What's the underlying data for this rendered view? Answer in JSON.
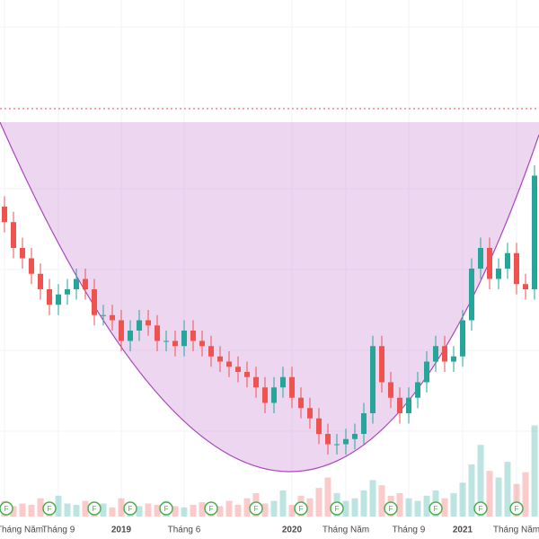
{
  "chart_data": {
    "type": "candlestick",
    "categories": [
      "Tháng Năm",
      null,
      null,
      null,
      null,
      null,
      "Tháng 9",
      null,
      null,
      null,
      null,
      null,
      null,
      "2019",
      null,
      null,
      null,
      null,
      null,
      null,
      "Tháng 6",
      null,
      null,
      null,
      null,
      null,
      null,
      null,
      null,
      null,
      null,
      null,
      "2020",
      null,
      null,
      null,
      null,
      null,
      "Tháng Năm",
      null,
      null,
      null,
      null,
      null,
      null,
      "Tháng 9",
      null,
      null,
      null,
      null,
      null,
      "2021",
      null,
      null,
      null,
      null,
      null,
      "Tháng Năm",
      null,
      null
    ],
    "open": [
      60,
      57,
      52,
      50,
      47,
      44,
      41,
      43,
      44,
      46,
      44,
      39,
      39,
      38,
      34,
      36,
      38,
      37,
      34,
      34,
      33,
      36,
      34,
      33,
      31,
      30,
      29,
      28,
      27,
      25,
      22,
      25,
      27,
      23,
      21,
      19,
      16,
      14,
      14,
      15,
      16,
      20,
      33,
      26,
      23,
      20,
      23,
      26,
      30,
      33,
      30,
      31,
      38,
      48,
      52,
      46,
      48,
      51,
      45,
      44
    ],
    "high": [
      62,
      59,
      54,
      52,
      49,
      46,
      45,
      46,
      48,
      48,
      46,
      41,
      41,
      40,
      38,
      40,
      40,
      39,
      36,
      36,
      38,
      38,
      36,
      35,
      33,
      32,
      31,
      30,
      29,
      27,
      27,
      29,
      29,
      25,
      23,
      21,
      18,
      16,
      17,
      18,
      22,
      35,
      35,
      28,
      25,
      25,
      28,
      32,
      35,
      35,
      33,
      40,
      50,
      54,
      54,
      50,
      53,
      53,
      47,
      68
    ],
    "low": [
      55,
      50,
      48,
      45,
      42,
      39,
      39,
      41,
      42,
      42,
      37,
      37,
      36,
      32,
      32,
      34,
      35,
      32,
      32,
      31,
      31,
      32,
      31,
      29,
      28,
      27,
      26,
      25,
      23,
      20,
      20,
      23,
      21,
      19,
      17,
      14,
      12,
      12,
      12,
      13,
      14,
      18,
      24,
      21,
      18,
      18,
      21,
      24,
      28,
      28,
      28,
      29,
      36,
      46,
      44,
      44,
      46,
      43,
      42,
      42
    ],
    "close": [
      57,
      52,
      50,
      47,
      44,
      41,
      43,
      44,
      46,
      44,
      39,
      39,
      38,
      34,
      36,
      38,
      37,
      34,
      34,
      33,
      36,
      34,
      33,
      31,
      30,
      29,
      28,
      27,
      25,
      22,
      25,
      27,
      23,
      21,
      19,
      16,
      14,
      14,
      15,
      16,
      20,
      33,
      26,
      23,
      20,
      23,
      26,
      30,
      33,
      30,
      31,
      38,
      48,
      52,
      46,
      48,
      51,
      45,
      44,
      66
    ],
    "volume": [
      12,
      8,
      10,
      9,
      14,
      11,
      16,
      10,
      9,
      12,
      8,
      10,
      7,
      14,
      9,
      8,
      10,
      9,
      12,
      8,
      7,
      9,
      11,
      10,
      8,
      12,
      9,
      14,
      18,
      10,
      12,
      20,
      9,
      16,
      14,
      22,
      30,
      18,
      12,
      14,
      20,
      28,
      24,
      16,
      18,
      14,
      12,
      16,
      20,
      14,
      18,
      26,
      40,
      55,
      35,
      30,
      42,
      25,
      34,
      70
    ],
    "up_color": "#26a69a",
    "down_color": "#ef5350",
    "ylim": [
      0,
      100
    ],
    "vlim": [
      0,
      100
    ],
    "events": [
      {
        "at": 0,
        "label": "F"
      },
      {
        "at": 5,
        "label": "F"
      },
      {
        "at": 10,
        "label": "F"
      },
      {
        "at": 14,
        "label": "F"
      },
      {
        "at": 18,
        "label": "F"
      },
      {
        "at": 23,
        "label": "F"
      },
      {
        "at": 28,
        "label": "F"
      },
      {
        "at": 33,
        "label": "F"
      },
      {
        "at": 37,
        "label": "F"
      },
      {
        "at": 43,
        "label": "F"
      },
      {
        "at": 48,
        "label": "F"
      },
      {
        "at": 53,
        "label": "F"
      },
      {
        "at": 57,
        "label": "F"
      }
    ]
  }
}
